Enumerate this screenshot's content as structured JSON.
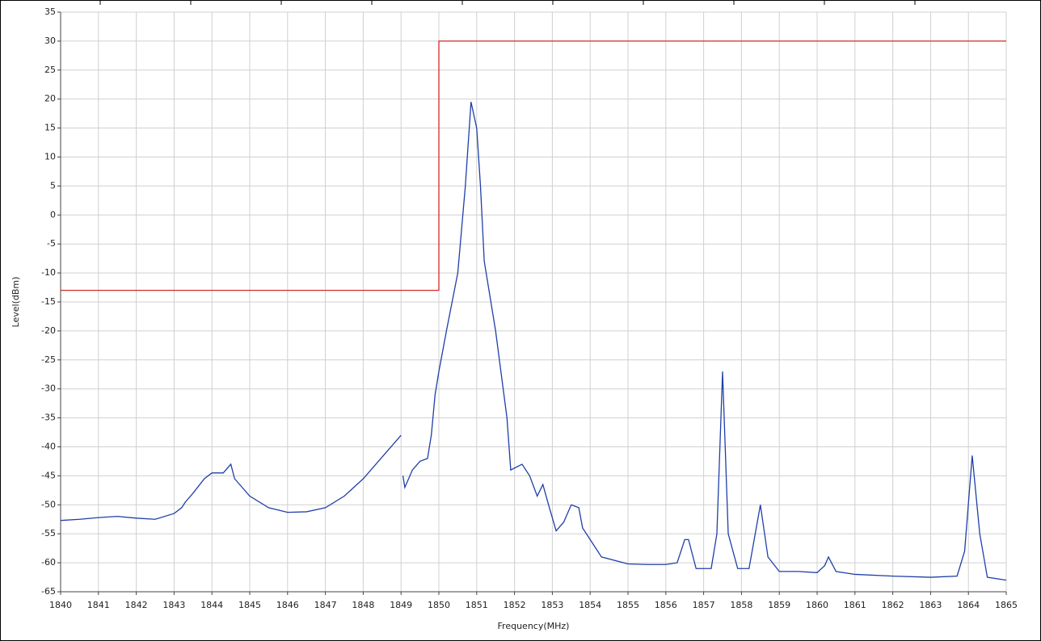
{
  "chart_data": {
    "type": "line",
    "xlabel": "Frequency(MHz)",
    "ylabel": "Level(dBm)",
    "xlim": [
      1840,
      1865
    ],
    "ylim": [
      -65,
      35
    ],
    "xticks": [
      1840,
      1841,
      1842,
      1843,
      1844,
      1845,
      1846,
      1847,
      1848,
      1849,
      1850,
      1851,
      1852,
      1853,
      1854,
      1855,
      1856,
      1857,
      1858,
      1859,
      1860,
      1861,
      1862,
      1863,
      1864,
      1865
    ],
    "yticks": [
      -65,
      -60,
      -55,
      -50,
      -45,
      -40,
      -35,
      -30,
      -25,
      -20,
      -15,
      -10,
      -5,
      0,
      5,
      10,
      15,
      20,
      25,
      30,
      35
    ],
    "grid": true,
    "series": [
      {
        "color": "#1f3fa8",
        "x": [
          1840,
          1840.5,
          1841,
          1841.5,
          1842,
          1842.5,
          1843,
          1843.2,
          1843.3,
          1843.5,
          1843.8,
          1844,
          1844.3,
          1844.5,
          1844.6,
          1844.8,
          1845,
          1845.5,
          1846,
          1846.5,
          1847,
          1847.5,
          1848,
          1849,
          1849,
          1849.05,
          1849.1,
          1849.3,
          1849.5,
          1849.7,
          1849.8,
          1849.9,
          1850,
          1850.2,
          1850.5,
          1850.7,
          1850.85,
          1851,
          1851.1,
          1851.2,
          1851.5,
          1851.8,
          1851.9,
          1852.2,
          1852.4,
          1852.6,
          1852.75,
          1852.9,
          1853.1,
          1853.3,
          1853.5,
          1853.7,
          1853.8,
          1854,
          1854.3,
          1855,
          1855.5,
          1856,
          1856.3,
          1856.5,
          1856.6,
          1856.8,
          1857.2,
          1857.35,
          1857.5,
          1857.65,
          1857.9,
          1858.2,
          1858.5,
          1858.7,
          1859,
          1859.5,
          1860,
          1860.2,
          1860.3,
          1860.5,
          1861,
          1862,
          1863,
          1863.7,
          1863.9,
          1864.1,
          1864.3,
          1864.5,
          1865
        ],
        "values": [
          -52.7,
          -52.5,
          -52.2,
          -52.0,
          -52.3,
          -52.5,
          -51.5,
          -50.5,
          -49.5,
          -48,
          -45.5,
          -44.5,
          -44.5,
          -43,
          -45.5,
          -47,
          -48.5,
          -50.5,
          -51.3,
          -51.2,
          -50.5,
          -48.5,
          -45.5,
          -38,
          null,
          -45,
          -47,
          -44,
          -42.5,
          -42,
          -38,
          -31,
          -27,
          -20,
          -10,
          5,
          19.5,
          15,
          5,
          -8,
          -20,
          -35,
          -44,
          -43,
          -45,
          -48.5,
          -46.5,
          -50,
          -54.5,
          -53,
          -50,
          -50.5,
          -54,
          -56,
          -59,
          -60.2,
          -60.3,
          -60.3,
          -60,
          -56,
          -56,
          -61,
          -61,
          -55,
          -27,
          -55,
          -61,
          -61,
          -50,
          -59,
          -61.5,
          -61.5,
          -61.7,
          -60.5,
          -59,
          -61.5,
          -62,
          -62.3,
          -62.5,
          -62.3,
          -58,
          -41.5,
          -55,
          -62.5,
          -63
        ]
      },
      {
        "color": "#d42a2a",
        "x": [
          1840,
          1850,
          1850,
          1865
        ],
        "values": [
          -13,
          -13,
          30,
          30
        ]
      }
    ]
  }
}
